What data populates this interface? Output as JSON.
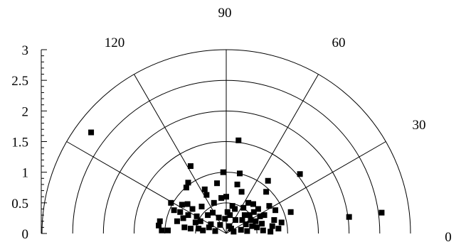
{
  "chart_data": {
    "type": "scatter",
    "coordinate_system": "polar-half",
    "title": "",
    "angle_unit": "degrees",
    "angle_ticks": [
      0,
      30,
      60,
      90,
      120
    ],
    "angle_tick_labels": [
      "0",
      "30",
      "60",
      "90",
      "120"
    ],
    "radius_range": [
      0,
      3
    ],
    "radius_ticks": [
      0,
      0.5,
      1,
      1.5,
      2,
      2.5,
      3
    ],
    "radius_tick_labels": [
      "0",
      "0.5",
      "1",
      "1.5",
      "2",
      "2.5",
      "3"
    ],
    "grid": true,
    "marker": "square",
    "marker_color": "#000000",
    "series": [
      {
        "points": [
          {
            "x": -2.2,
            "y": 1.65
          },
          {
            "x": -0.58,
            "y": 1.1
          },
          {
            "x": -0.62,
            "y": 0.83
          },
          {
            "x": -0.65,
            "y": 0.75
          },
          {
            "x": -0.9,
            "y": 0.5
          },
          {
            "x": -0.72,
            "y": 0.47
          },
          {
            "x": -0.63,
            "y": 0.48
          },
          {
            "x": -1.08,
            "y": 0.2
          },
          {
            "x": -1.1,
            "y": 0.13
          },
          {
            "x": -1.05,
            "y": 0.05
          },
          {
            "x": -0.95,
            "y": 0.05
          },
          {
            "x": -0.85,
            "y": 0.38
          },
          {
            "x": -0.75,
            "y": 0.35
          },
          {
            "x": -0.7,
            "y": 0.25
          },
          {
            "x": -0.62,
            "y": 0.3
          },
          {
            "x": -0.55,
            "y": 0.4
          },
          {
            "x": -0.5,
            "y": 0.18
          },
          {
            "x": -0.45,
            "y": 0.08
          },
          {
            "x": -0.4,
            "y": 0.44
          },
          {
            "x": -0.35,
            "y": 0.72
          },
          {
            "x": -0.32,
            "y": 0.63
          },
          {
            "x": -0.3,
            "y": 0.3
          },
          {
            "x": -0.25,
            "y": 0.15
          },
          {
            "x": -0.2,
            "y": 0.5
          },
          {
            "x": -0.15,
            "y": 0.82
          },
          {
            "x": -0.12,
            "y": 0.26
          },
          {
            "x": -0.08,
            "y": 0.58
          },
          {
            "x": -0.05,
            "y": 1.0
          },
          {
            "x": 0.0,
            "y": 0.6
          },
          {
            "x": 0.02,
            "y": 0.35
          },
          {
            "x": 0.05,
            "y": 0.12
          },
          {
            "x": 0.08,
            "y": 0.08
          },
          {
            "x": 0.1,
            "y": 0.45
          },
          {
            "x": 0.15,
            "y": 0.22
          },
          {
            "x": 0.18,
            "y": 0.8
          },
          {
            "x": 0.2,
            "y": 1.52
          },
          {
            "x": 0.22,
            "y": 0.98
          },
          {
            "x": 0.25,
            "y": 0.68
          },
          {
            "x": 0.28,
            "y": 0.42
          },
          {
            "x": 0.3,
            "y": 0.3
          },
          {
            "x": 0.32,
            "y": 0.15
          },
          {
            "x": 0.36,
            "y": 0.5
          },
          {
            "x": 0.4,
            "y": 0.22
          },
          {
            "x": 0.45,
            "y": 0.35
          },
          {
            "x": 0.5,
            "y": 0.1
          },
          {
            "x": 0.55,
            "y": 0.28
          },
          {
            "x": 0.6,
            "y": 0.05
          },
          {
            "x": 0.65,
            "y": 0.68
          },
          {
            "x": 0.68,
            "y": 0.86
          },
          {
            "x": 0.7,
            "y": 0.45
          },
          {
            "x": 0.75,
            "y": 0.12
          },
          {
            "x": 0.8,
            "y": 0.38
          },
          {
            "x": 0.85,
            "y": 0.08
          },
          {
            "x": 0.78,
            "y": 0.22
          },
          {
            "x": 1.05,
            "y": 0.35
          },
          {
            "x": 1.2,
            "y": 0.97
          },
          {
            "x": 2.0,
            "y": 0.27
          },
          {
            "x": 2.53,
            "y": 0.34
          },
          {
            "x": -0.38,
            "y": 0.05
          },
          {
            "x": -0.28,
            "y": 0.1
          },
          {
            "x": -0.18,
            "y": 0.04
          },
          {
            "x": -0.1,
            "y": 0.14
          },
          {
            "x": 0.12,
            "y": 0.03
          },
          {
            "x": 0.24,
            "y": 0.06
          },
          {
            "x": 0.34,
            "y": 0.04
          },
          {
            "x": 0.42,
            "y": 0.12
          },
          {
            "x": 0.48,
            "y": 0.2
          },
          {
            "x": 0.52,
            "y": 0.4
          },
          {
            "x": 0.58,
            "y": 0.16
          },
          {
            "x": -0.58,
            "y": 0.08
          },
          {
            "x": -0.48,
            "y": 0.28
          },
          {
            "x": -0.42,
            "y": 0.2
          },
          {
            "x": -0.22,
            "y": 0.34
          },
          {
            "x": -0.02,
            "y": 0.24
          },
          {
            "x": 0.06,
            "y": 0.3
          },
          {
            "x": 0.14,
            "y": 0.4
          },
          {
            "x": 0.26,
            "y": 0.22
          },
          {
            "x": 0.38,
            "y": 0.3
          },
          {
            "x": 0.44,
            "y": 0.48
          },
          {
            "x": 0.62,
            "y": 0.3
          },
          {
            "x": -0.68,
            "y": 0.1
          },
          {
            "x": -0.8,
            "y": 0.2
          },
          {
            "x": 0.72,
            "y": 0.03
          },
          {
            "x": 0.9,
            "y": 0.18
          }
        ]
      }
    ]
  }
}
